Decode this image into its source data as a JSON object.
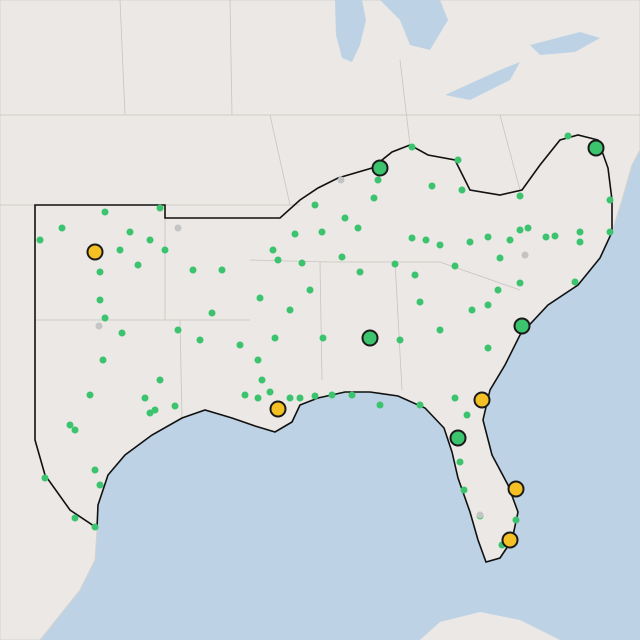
{
  "map": {
    "marker_colors": {
      "station": "#3cc36e",
      "major_ok": "#3cc36e",
      "major_warn": "#f5c024",
      "inactive": "#c4c4c4"
    }
  }
}
